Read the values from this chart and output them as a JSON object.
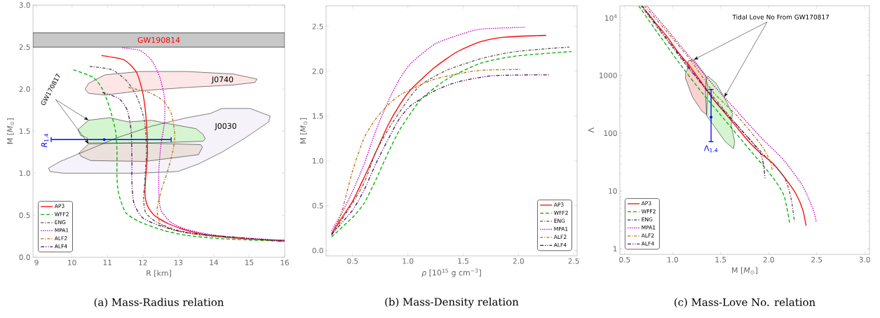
{
  "chart_data": [
    {
      "type": "line",
      "title": "(a) Mass-Radius relation",
      "xlabel": "R [km]",
      "ylabel": "M [*M*$_{⊙}$]",
      "xlim": [
        8.9,
        16
      ],
      "ylim": [
        0,
        3
      ],
      "xticks": [
        9,
        10,
        11,
        12,
        13,
        14,
        15,
        16
      ],
      "yticks": [
        {
          "value": 0,
          "label": "0.0"
        },
        {
          "value": 0.5,
          "label": "0.5"
        },
        {
          "value": 1,
          "label": "1.0"
        },
        {
          "value": 1.5,
          "label": "1.5"
        },
        {
          "value": 2,
          "label": "2.0"
        },
        {
          "value": 2.5,
          "label": "2.5"
        },
        {
          "value": 3,
          "label": "3.0"
        }
      ],
      "legend": "bottom left",
      "bands": [
        {
          "axis": "y",
          "from": 2.5,
          "to": 2.67,
          "label": "GW190814",
          "color": "#c8c8c8"
        }
      ],
      "annotations": [
        {
          "text": "GW170817",
          "x": 10.47,
          "y": 1.63
        }
      ],
      "series": [
        {
          "type": "area",
          "name": "J0030",
          "color": "#f6f2f9",
          "x": [
            9.34,
            9.67,
            10.47,
            11.26,
            12.25,
            13.24,
            13.9,
            14.23,
            15.02,
            15.59,
            15.55,
            14.89,
            14.23,
            13.57,
            12.98,
            11.92,
            9.74,
            9.38
          ],
          "values": [
            1.06,
            1.14,
            1.28,
            1.42,
            1.56,
            1.66,
            1.71,
            1.77,
            1.77,
            1.68,
            1.61,
            1.42,
            1.25,
            1.11,
            1.02,
            1.0,
            1.0,
            1.02
          ]
        },
        {
          "type": "area",
          "name": "J0740",
          "color": "#fde6e6",
          "x": [
            10.37,
            10.47,
            10.93,
            11.92,
            13.24,
            14.56,
            15.22,
            15.16,
            14.56,
            13.24,
            11.92,
            10.93,
            10.47
          ],
          "values": [
            2.0,
            2.07,
            2.17,
            2.21,
            2.21,
            2.18,
            2.12,
            2.08,
            2.05,
            2.02,
            1.98,
            1.93,
            1.95
          ]
        },
        {
          "type": "area",
          "color": "#d4f5d0",
          "x": [
            10.17,
            10.47,
            11.06,
            11.59,
            12.25,
            12.58,
            13.5,
            13.7,
            13.76,
            13.7,
            12.25,
            10.43,
            10.43,
            10.24
          ],
          "values": [
            1.52,
            1.63,
            1.66,
            1.61,
            1.63,
            1.6,
            1.53,
            1.46,
            1.41,
            1.38,
            1.36,
            1.36,
            1.42,
            1.45
          ]
        },
        {
          "type": "area",
          "color": "#ebe1dc",
          "x": [
            10.2,
            10.47,
            11.92,
            13.63,
            13.68,
            13.57,
            12.05,
            10.53,
            10.26
          ],
          "values": [
            1.24,
            1.35,
            1.36,
            1.34,
            1.31,
            1.22,
            1.14,
            1.15,
            1.2
          ]
        },
        {
          "name": "AP3",
          "color": "#ff0000",
          "line_style": "solid",
          "x": [
            10.83,
            11.46,
            11.82,
            12.0,
            12.1,
            12.13,
            12.08,
            12.06,
            12.13,
            12.32,
            12.71,
            13.24,
            13.9,
            14.89,
            16.0
          ],
          "values": [
            2.4,
            2.35,
            2.2,
            1.95,
            1.61,
            1.25,
            0.95,
            0.75,
            0.61,
            0.5,
            0.4,
            0.32,
            0.26,
            0.22,
            0.2
          ]
        },
        {
          "name": "WFF2",
          "color": "#00b000",
          "line_style": "dashed",
          "x": [
            10.04,
            10.6,
            10.86,
            11.06,
            11.23,
            11.27,
            11.27,
            11.32,
            11.52,
            11.92,
            12.58,
            13.24,
            14.23,
            16.0
          ],
          "values": [
            2.23,
            2.14,
            2.0,
            1.78,
            1.5,
            1.25,
            0.95,
            0.75,
            0.53,
            0.42,
            0.32,
            0.26,
            0.22,
            0.19
          ]
        },
        {
          "name": "ENG",
          "color": "#555555",
          "line_style": "dashdot",
          "x": [
            10.5,
            11.13,
            11.56,
            11.85,
            12.05,
            12.1,
            12.05,
            12.02,
            12.08,
            12.38,
            12.98,
            13.9,
            16.0
          ],
          "values": [
            2.27,
            2.23,
            2.09,
            1.89,
            1.61,
            1.25,
            0.89,
            0.7,
            0.53,
            0.42,
            0.32,
            0.26,
            0.19
          ]
        },
        {
          "name": "MPA1",
          "color": "#c000c0",
          "line_style": "dotted",
          "x": [
            11.42,
            11.92,
            12.25,
            12.48,
            12.61,
            12.61,
            12.51,
            12.45,
            12.45,
            12.51,
            12.78,
            13.24,
            14.23,
            16.0
          ],
          "values": [
            2.49,
            2.46,
            2.34,
            2.14,
            1.89,
            1.61,
            1.34,
            1.03,
            0.75,
            0.56,
            0.42,
            0.33,
            0.25,
            0.2
          ]
        },
        {
          "name": "ALF2",
          "color": "#b8700a",
          "line_style": "dashdot",
          "x": [
            11.59,
            12.18,
            12.58,
            12.81,
            12.9,
            12.84,
            12.68,
            12.51,
            12.4,
            12.51,
            12.91,
            13.9,
            16.0
          ],
          "values": [
            2.02,
            1.96,
            1.86,
            1.7,
            1.45,
            1.25,
            1.0,
            0.78,
            0.56,
            0.39,
            0.32,
            0.25,
            0.19
          ]
        },
        {
          "name": "ALF4",
          "color": "#5a0a5a",
          "line_style": "dashdotdot",
          "x": [
            10.86,
            11.32,
            11.56,
            11.67,
            11.69,
            11.69,
            11.75,
            11.99,
            12.45,
            13.24,
            14.56,
            16.0
          ],
          "values": [
            1.96,
            1.89,
            1.75,
            1.5,
            1.17,
            0.89,
            0.64,
            0.47,
            0.38,
            0.29,
            0.24,
            0.19
          ]
        },
        {
          "type": "scatter",
          "name": "*R*$_{1.4}$",
          "color": "#0000ff",
          "marker": "circle",
          "x": [
            10.91
          ],
          "values": [
            1.4
          ],
          "xerrors": [
            [
              9.4,
              12.81
            ]
          ]
        }
      ]
    },
    {
      "type": "line",
      "title": "(b) Mass-Density relation",
      "xlabel": "*ρ* [10$^{15}$ g cm$^{−3}$]",
      "ylabel": "M [*M*$_{⊙}$]",
      "xlim": [
        0.26,
        2.53
      ],
      "ylim": [
        -0.06,
        2.73
      ],
      "xticks": [
        0.5,
        {
          "value": 1,
          "label": "1.0"
        },
        1.5,
        {
          "value": 2,
          "label": "2.0"
        },
        2.5
      ],
      "yticks": [
        {
          "value": 0,
          "label": "0.0"
        },
        {
          "value": 0.5,
          "label": "0.5"
        },
        {
          "value": 1,
          "label": "1.0"
        },
        {
          "value": 1.5,
          "label": "1.5"
        },
        {
          "value": 2,
          "label": "2.0"
        },
        {
          "value": 2.5,
          "label": "2.5"
        }
      ],
      "legend": "bottom right",
      "series": [
        {
          "name": "AP3",
          "color": "#ff0000",
          "line_style": "solid",
          "x": [
            0.31,
            0.394,
            0.5,
            0.606,
            0.711,
            0.817,
            0.923,
            1.03,
            1.24,
            1.45,
            1.66,
            1.87,
            2.25
          ],
          "values": [
            0.19,
            0.35,
            0.55,
            0.82,
            1.1,
            1.39,
            1.62,
            1.8,
            2.04,
            2.22,
            2.33,
            2.38,
            2.4
          ]
        },
        {
          "name": "WFF2",
          "color": "#00b000",
          "line_style": "dashed",
          "x": [
            0.31,
            0.5,
            0.606,
            0.711,
            0.817,
            0.923,
            1.03,
            1.13,
            1.35,
            1.66,
            1.98,
            2.48
          ],
          "values": [
            0.15,
            0.37,
            0.53,
            0.79,
            1.08,
            1.34,
            1.54,
            1.7,
            1.91,
            2.09,
            2.17,
            2.22
          ]
        },
        {
          "name": "ENG",
          "color": "#555555",
          "line_style": "dashdot",
          "x": [
            0.31,
            0.5,
            0.606,
            0.711,
            0.817,
            0.923,
            1.03,
            1.13,
            1.35,
            1.66,
            1.98,
            2.46
          ],
          "values": [
            0.17,
            0.53,
            0.76,
            1.1,
            1.34,
            1.54,
            1.73,
            1.86,
            2.01,
            2.14,
            2.22,
            2.27
          ]
        },
        {
          "name": "MPA1",
          "color": "#c000c0",
          "line_style": "dotted",
          "x": [
            0.31,
            0.394,
            0.5,
            0.606,
            0.711,
            0.817,
            0.923,
            1.03,
            1.24,
            1.45,
            1.66,
            2.06
          ],
          "values": [
            0.22,
            0.4,
            0.66,
            0.97,
            1.34,
            1.65,
            1.91,
            2.09,
            2.3,
            2.4,
            2.47,
            2.49
          ]
        },
        {
          "name": "ALF2",
          "color": "#b8700a",
          "line_style": "dashdot",
          "x": [
            0.31,
            0.394,
            0.5,
            0.606,
            0.711,
            0.817,
            0.923,
            1.03,
            1.24,
            1.45,
            1.66,
            2.02
          ],
          "values": [
            0.19,
            0.4,
            0.89,
            1.26,
            1.47,
            1.62,
            1.73,
            1.8,
            1.91,
            1.97,
            2.01,
            2.02
          ]
        },
        {
          "name": "ALF4",
          "color": "#5a0a5a",
          "line_style": "dashdotdot",
          "x": [
            0.31,
            0.5,
            0.606,
            0.711,
            0.817,
            0.923,
            1.03,
            1.24,
            1.45,
            1.77,
            2.28
          ],
          "values": [
            0.18,
            0.45,
            0.68,
            0.97,
            1.23,
            1.47,
            1.62,
            1.78,
            1.88,
            1.95,
            1.96
          ]
        }
      ]
    },
    {
      "type": "line",
      "title": "(c) Mass-Love No. relation",
      "xlabel": "M [*M*$_{⊙}$]",
      "ylabel": "Λ",
      "xlim": [
        0.45,
        3.05
      ],
      "ylim": [
        0.8,
        16000
      ],
      "log": "y",
      "xticks": [
        0.5,
        {
          "value": 1,
          "label": "1.0"
        },
        1.5,
        {
          "value": 2,
          "label": "2.0"
        },
        2.5,
        {
          "value": 3,
          "label": "3.0"
        }
      ],
      "yticks": [
        1,
        10,
        100,
        1000,
        {
          "value": 10000,
          "label": "10$^{4}$"
        }
      ],
      "legend": "bottom left",
      "annotations": [
        {
          "text": "Tidal Love No From GW170817",
          "x": 1.22,
          "y": 1870
        }
      ],
      "series": [
        {
          "type": "area",
          "color": "#fad2d2",
          "x": [
            1.159,
            1.22,
            1.341,
            1.366,
            1.354,
            1.305,
            1.207,
            1.134,
            1.134,
            1.154
          ],
          "values": [
            1780,
            1870,
            1020,
            610,
            209,
            240,
            420,
            885,
            1070,
            1290
          ]
        },
        {
          "type": "area",
          "color": "#d4f5d0",
          "x": [
            1.366,
            1.451,
            1.537,
            1.622,
            1.61,
            1.646,
            1.634,
            1.549,
            1.427,
            1.354,
            1.341,
            1.349
          ],
          "values": [
            973,
            735,
            420,
            219,
            137,
            71,
            54,
            71,
            137,
            200,
            506,
            845
          ]
        },
        {
          "name": "AP3",
          "color": "#ff0000",
          "line_style": "solid",
          "x": [
            0.707,
            0.817,
            0.939,
            1.061,
            1.183,
            1.305,
            1.427,
            1.549,
            1.671,
            1.793,
            1.915,
            2.037,
            2.159,
            2.28,
            2.354,
            2.39
          ],
          "values": [
            13860,
            8300,
            4740,
            2470,
            1410,
            735,
            383,
            219,
            125,
            71.5,
            44.9,
            30.9,
            17.7,
            9.2,
            4.8,
            2.5
          ]
        },
        {
          "name": "WFF2",
          "color": "#00b000",
          "line_style": "dashed",
          "x": [
            0.646,
            0.817,
            1.061,
            1.305,
            1.549,
            1.793,
            2.037,
            2.159,
            2.22
          ],
          "values": [
            16000,
            6270,
            1700,
            506,
            165,
            54,
            17.7,
            8.4,
            2.7
          ]
        },
        {
          "name": "ENG",
          "color": "#555555",
          "line_style": "dashdot",
          "x": [
            0.67,
            0.939,
            1.183,
            1.427,
            1.671,
            1.915,
            2.159,
            2.232,
            2.268
          ],
          "values": [
            16000,
            4120,
            1230,
            420,
            137,
            49,
            17.7,
            7.6,
            3.0
          ]
        },
        {
          "name": "MPA1",
          "color": "#c000c0",
          "line_style": "dotted",
          "x": [
            0.73,
            0.939,
            1.183,
            1.427,
            1.671,
            1.915,
            2.159,
            2.354,
            2.463,
            2.495
          ],
          "values": [
            16000,
            6270,
            2050,
            670,
            240,
            86,
            33.9,
            12.2,
            4.8,
            3.0
          ]
        },
        {
          "name": "ALF2",
          "color": "#b8700a",
          "line_style": "dashdot",
          "x": [
            0.707,
            0.939,
            1.183,
            1.427,
            1.671,
            1.915,
            2.012,
            2.037
          ],
          "values": [
            16000,
            5710,
            1870,
            506,
            200,
            65,
            34,
            23.4
          ]
        },
        {
          "name": "ALF4",
          "color": "#5a0a5a",
          "line_style": "dashdotdot",
          "x": [
            0.683,
            0.939,
            1.183,
            1.427,
            1.671,
            1.915,
            1.963
          ],
          "values": [
            16000,
            4320,
            1290,
            383,
            137,
            44.9,
            16.1
          ]
        },
        {
          "type": "scatter",
          "name": "Λ$_{1.4}$",
          "color": "#0000ff",
          "marker": "circle",
          "x": [
            1.4
          ],
          "values": [
            190
          ],
          "errors": [
            [
              70,
              582
            ]
          ]
        }
      ]
    }
  ]
}
